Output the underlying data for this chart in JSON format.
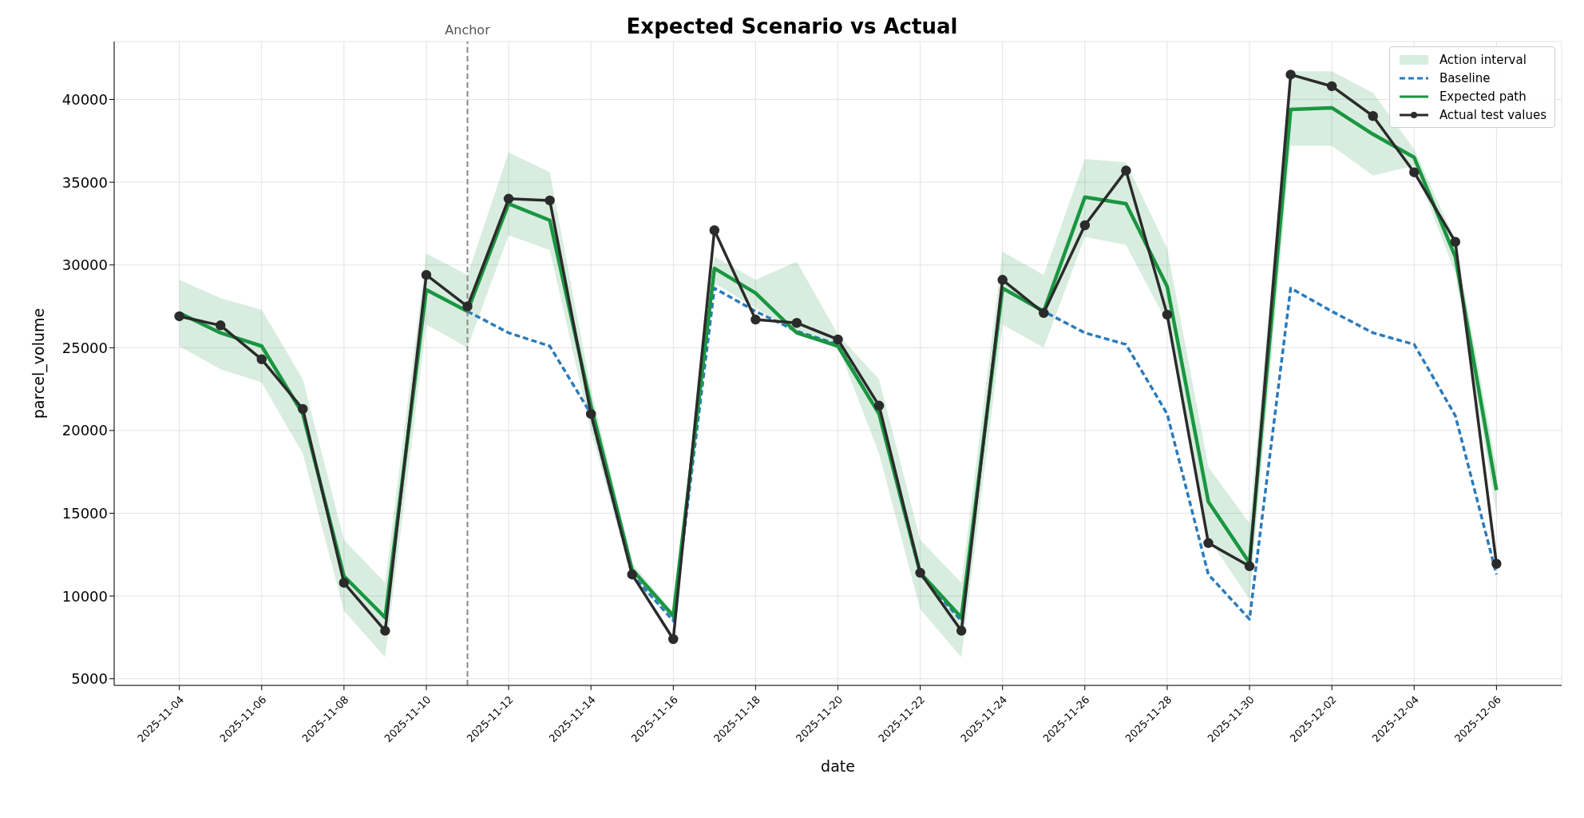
{
  "chart_data": {
    "type": "line",
    "title": "Expected Scenario vs Actual",
    "xlabel": "date",
    "ylabel": "parcel_volume",
    "x": [
      "2025-11-04",
      "2025-11-05",
      "2025-11-06",
      "2025-11-07",
      "2025-11-08",
      "2025-11-09",
      "2025-11-10",
      "2025-11-11",
      "2025-11-12",
      "2025-11-13",
      "2025-11-14",
      "2025-11-15",
      "2025-11-16",
      "2025-11-17",
      "2025-11-18",
      "2025-11-19",
      "2025-11-20",
      "2025-11-21",
      "2025-11-22",
      "2025-11-23",
      "2025-11-24",
      "2025-11-25",
      "2025-11-26",
      "2025-11-27",
      "2025-11-28",
      "2025-11-29",
      "2025-11-30",
      "2025-12-01",
      "2025-12-02",
      "2025-12-03",
      "2025-12-04",
      "2025-12-05",
      "2025-12-06"
    ],
    "series": [
      {
        "name": "Baseline",
        "color": "#2b7bba",
        "line_style": "dashed",
        "marker": "none",
        "values": [
          null,
          null,
          null,
          null,
          null,
          null,
          null,
          27200,
          25900,
          25100,
          21000,
          11300,
          8500,
          28600,
          27200,
          26000,
          25200,
          21000,
          11300,
          8500,
          28600,
          27200,
          25900,
          25200,
          21000,
          11300,
          8600,
          28600,
          27200,
          25900,
          25200,
          20900,
          11300
        ]
      },
      {
        "name": "Expected path",
        "color": "#1a9641",
        "line_style": "solid",
        "marker": "none",
        "values": [
          27100,
          25900,
          25100,
          21000,
          11200,
          8700,
          28500,
          27200,
          33700,
          32700,
          21500,
          11600,
          8800,
          29800,
          28300,
          25900,
          25100,
          21000,
          11400,
          8700,
          28600,
          27200,
          34100,
          33700,
          28700,
          15700,
          12000,
          39400,
          39500,
          37900,
          36500,
          30500,
          16400
        ],
        "lower": [
          25100,
          23700,
          22900,
          18600,
          9100,
          6300,
          26400,
          25000,
          31800,
          30900,
          20000,
          11000,
          8500,
          28900,
          27400,
          25800,
          25100,
          18600,
          9200,
          6300,
          26400,
          25000,
          31700,
          31200,
          26500,
          13500,
          9800,
          37200,
          37200,
          35400,
          36000,
          29500,
          15000
        ],
        "upper": [
          29100,
          28000,
          27300,
          23100,
          13400,
          10800,
          30700,
          29400,
          36800,
          35600,
          22500,
          12000,
          9000,
          30500,
          29100,
          30200,
          25800,
          23100,
          13400,
          10800,
          30800,
          29400,
          36400,
          36200,
          31000,
          17800,
          14400,
          41700,
          41700,
          40400,
          37000,
          31500,
          17800
        ]
      },
      {
        "name": "Actual test values",
        "color": "#2b2b2b",
        "line_style": "solid",
        "marker": "circle",
        "values": [
          26900,
          26350,
          24300,
          21300,
          10800,
          7900,
          29400,
          27500,
          34000,
          33900,
          21000,
          11300,
          7400,
          32100,
          26700,
          26500,
          25500,
          21500,
          11400,
          7900,
          29100,
          27100,
          32400,
          35700,
          27000,
          13200,
          11800,
          41500,
          40800,
          39000,
          35600,
          31400,
          11950
        ]
      }
    ],
    "xlim": [
      "2025-11-02T10:00",
      "2025-12-07T14:00"
    ],
    "xticks": [
      "2025-11-04",
      "2025-11-06",
      "2025-11-08",
      "2025-11-10",
      "2025-11-12",
      "2025-11-14",
      "2025-11-16",
      "2025-11-18",
      "2025-11-20",
      "2025-11-22",
      "2025-11-24",
      "2025-11-26",
      "2025-11-28",
      "2025-11-30",
      "2025-12-02",
      "2025-12-04",
      "2025-12-06"
    ],
    "ylim": [
      4600,
      43500
    ],
    "yticks": [
      5000,
      10000,
      15000,
      20000,
      25000,
      30000,
      35000,
      40000
    ],
    "ref_lines": [
      {
        "axis": "x",
        "value": "2025-11-11",
        "label": "Anchor",
        "color": "#888888",
        "line_style": "dashed"
      }
    ],
    "annotations": [
      "Action interval"
    ],
    "grid": true,
    "legend": "top right"
  }
}
